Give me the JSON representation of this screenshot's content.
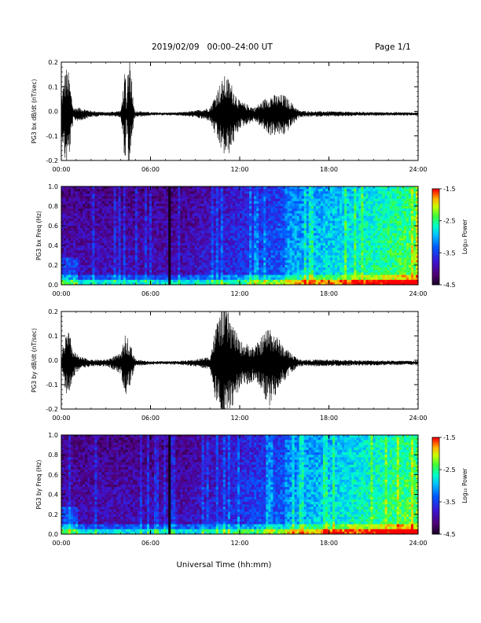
{
  "header": {
    "date_range": "2019/02/09   00:00–24:00 UT",
    "page_label": "Page 1/1"
  },
  "x_axis": {
    "title": "Universal Time (hh:mm)",
    "ticks": [
      "00:00",
      "06:00",
      "12:00",
      "18:00",
      "24:00"
    ]
  },
  "chart_data": [
    {
      "type": "line",
      "ylabel": "PG3 bx dB/dt (nT/sec)",
      "xlim": [
        0,
        24
      ],
      "ylim": [
        -0.2,
        0.2
      ],
      "yticks": [
        "0.2",
        "0.1",
        "0.0",
        "-0.1",
        "-0.2"
      ],
      "baseline": -0.01,
      "series": [
        {
          "x": [
            0,
            0.3,
            0.5,
            0.8,
            1.2,
            2,
            3,
            4,
            4.3,
            4.5,
            5,
            6,
            7,
            8,
            9,
            10,
            10.5,
            11,
            11.3,
            12,
            13,
            14,
            15,
            16,
            17,
            18,
            20,
            22,
            24
          ],
          "y": [
            0.05,
            0.15,
            0.13,
            0.02,
            0.02,
            0.01,
            0.005,
            0.01,
            0.14,
            -0.19,
            0.01,
            0.005,
            0.004,
            0.005,
            0.01,
            0.02,
            0.08,
            0.12,
            0.11,
            0.04,
            0.02,
            0.06,
            0.06,
            0.01,
            0.008,
            0.008,
            0.006,
            0.005,
            0.005
          ]
        }
      ]
    },
    {
      "type": "heatmap",
      "ylabel": "PG3 bx Freq (Hz)",
      "xlim": [
        0,
        24
      ],
      "ylim": [
        0,
        1
      ],
      "yticks": [
        "1.0",
        "0.8",
        "0.6",
        "0.4",
        "0.2",
        "0.0"
      ],
      "colorbar": {
        "label": "Log₁₀ Power",
        "ticks": [
          "-1.5",
          "-2.5",
          "-3.5",
          "-4.5"
        ],
        "range": [
          -4.5,
          -1.5
        ]
      }
    },
    {
      "type": "line",
      "ylabel": "PG3 by dB/dt (nT/sec)",
      "xlim": [
        0,
        24
      ],
      "ylim": [
        -0.2,
        0.2
      ],
      "yticks": [
        "0.2",
        "0.1",
        "0.0",
        "-0.1",
        "-0.2"
      ],
      "baseline": -0.01,
      "series": [
        {
          "x": [
            0,
            0.3,
            0.5,
            0.8,
            1.2,
            2,
            3,
            4,
            4.3,
            4.5,
            5,
            6,
            7,
            8,
            9,
            10,
            10.5,
            11,
            11.3,
            12,
            13,
            14,
            15,
            16,
            17,
            18,
            20,
            22,
            24
          ],
          "y": [
            0.03,
            0.09,
            0.1,
            0.04,
            0.02,
            0.01,
            0.01,
            0.03,
            0.09,
            0.08,
            0.01,
            0.005,
            0.005,
            0.006,
            0.01,
            0.02,
            0.14,
            0.19,
            0.15,
            0.07,
            0.05,
            0.12,
            0.05,
            0.01,
            0.01,
            0.01,
            0.008,
            0.007,
            0.006
          ]
        }
      ]
    },
    {
      "type": "heatmap",
      "ylabel": "PG3 by Freq (Hz)",
      "xlim": [
        0,
        24
      ],
      "ylim": [
        0,
        1
      ],
      "yticks": [
        "1.0",
        "0.8",
        "0.6",
        "0.4",
        "0.2",
        "0.0"
      ],
      "colorbar": {
        "label": "Log₁₀ Power",
        "ticks": [
          "-1.5",
          "-2.5",
          "-3.5",
          "-4.5"
        ],
        "range": [
          -4.5,
          -1.5
        ]
      }
    }
  ]
}
